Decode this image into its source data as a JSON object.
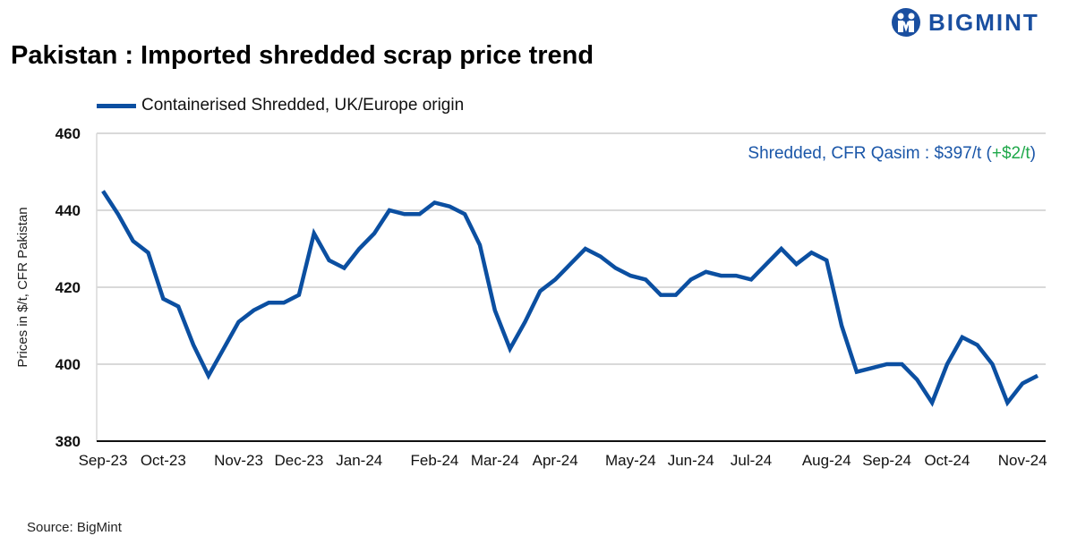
{
  "header": {
    "title": "Pakistan : Imported shredded scrap price trend",
    "brand": "BIGMINT"
  },
  "footer": {
    "source": "Source: BigMint"
  },
  "colors": {
    "line": "#0b4fa1",
    "annotation": "#1a56a8",
    "change": "#1fa84a",
    "brand": "#1a4fa0"
  },
  "annotation": {
    "prefix": "Shredded, CFR Qasim : $397/t (",
    "change": "+$2/t",
    "suffix": ")"
  },
  "chart_data": {
    "type": "line",
    "title": "Pakistan : Imported shredded scrap price trend",
    "ylabel": "Prices in $/t, CFR Pakistan",
    "xlabel": "",
    "ylim": [
      380,
      460
    ],
    "yticks": [
      380,
      400,
      420,
      440,
      460
    ],
    "grid": true,
    "legend": "top-left",
    "x_tick_labels": [
      {
        "index": 0,
        "label": "Sep-23"
      },
      {
        "index": 4,
        "label": "Oct-23"
      },
      {
        "index": 9,
        "label": "Nov-23"
      },
      {
        "index": 13,
        "label": "Dec-23"
      },
      {
        "index": 17,
        "label": "Jan-24"
      },
      {
        "index": 22,
        "label": "Feb-24"
      },
      {
        "index": 26,
        "label": "Mar-24"
      },
      {
        "index": 30,
        "label": "Apr-24"
      },
      {
        "index": 35,
        "label": "May-24"
      },
      {
        "index": 39,
        "label": "Jun-24"
      },
      {
        "index": 43,
        "label": "Jul-24"
      },
      {
        "index": 48,
        "label": "Aug-24"
      },
      {
        "index": 52,
        "label": "Sep-24"
      },
      {
        "index": 56,
        "label": "Oct-24"
      },
      {
        "index": 61,
        "label": "Nov-24"
      }
    ],
    "series": [
      {
        "name": "Containerised Shredded, UK/Europe origin",
        "values": [
          445,
          439,
          432,
          429,
          417,
          415,
          405,
          397,
          404,
          411,
          414,
          416,
          416,
          418,
          434,
          427,
          425,
          430,
          434,
          440,
          439,
          439,
          442,
          441,
          439,
          431,
          414,
          404,
          411,
          419,
          422,
          426,
          430,
          428,
          425,
          423,
          422,
          418,
          418,
          422,
          424,
          423,
          423,
          422,
          426,
          430,
          426,
          429,
          427,
          410,
          398,
          399,
          400,
          400,
          396,
          390,
          400,
          407,
          405,
          400,
          390,
          395,
          397
        ]
      }
    ]
  }
}
